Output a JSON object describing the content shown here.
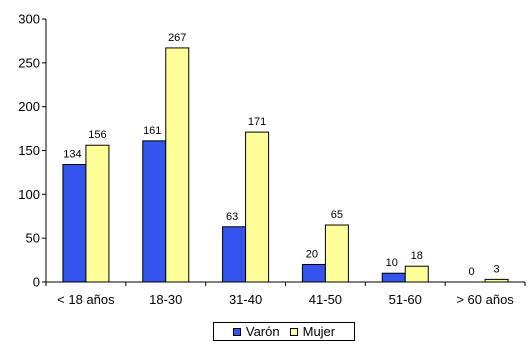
{
  "chart_data": {
    "type": "bar",
    "categories": [
      "< 18 años",
      "18-30",
      "31-40",
      "41-50",
      "51-60",
      "> 60 años"
    ],
    "series": [
      {
        "name": "Varón",
        "values": [
          134,
          161,
          63,
          20,
          10,
          0
        ],
        "color": "#3355ee"
      },
      {
        "name": "Mujer",
        "values": [
          156,
          267,
          171,
          65,
          18,
          3
        ],
        "color": "#ffff99"
      }
    ],
    "ylim": [
      0,
      300
    ],
    "yticks": [
      "0",
      "50",
      "100",
      "150",
      "200",
      "250",
      "300"
    ],
    "title": "",
    "xlabel": "",
    "ylabel": "",
    "grid": false,
    "legend_position": "bottom"
  }
}
